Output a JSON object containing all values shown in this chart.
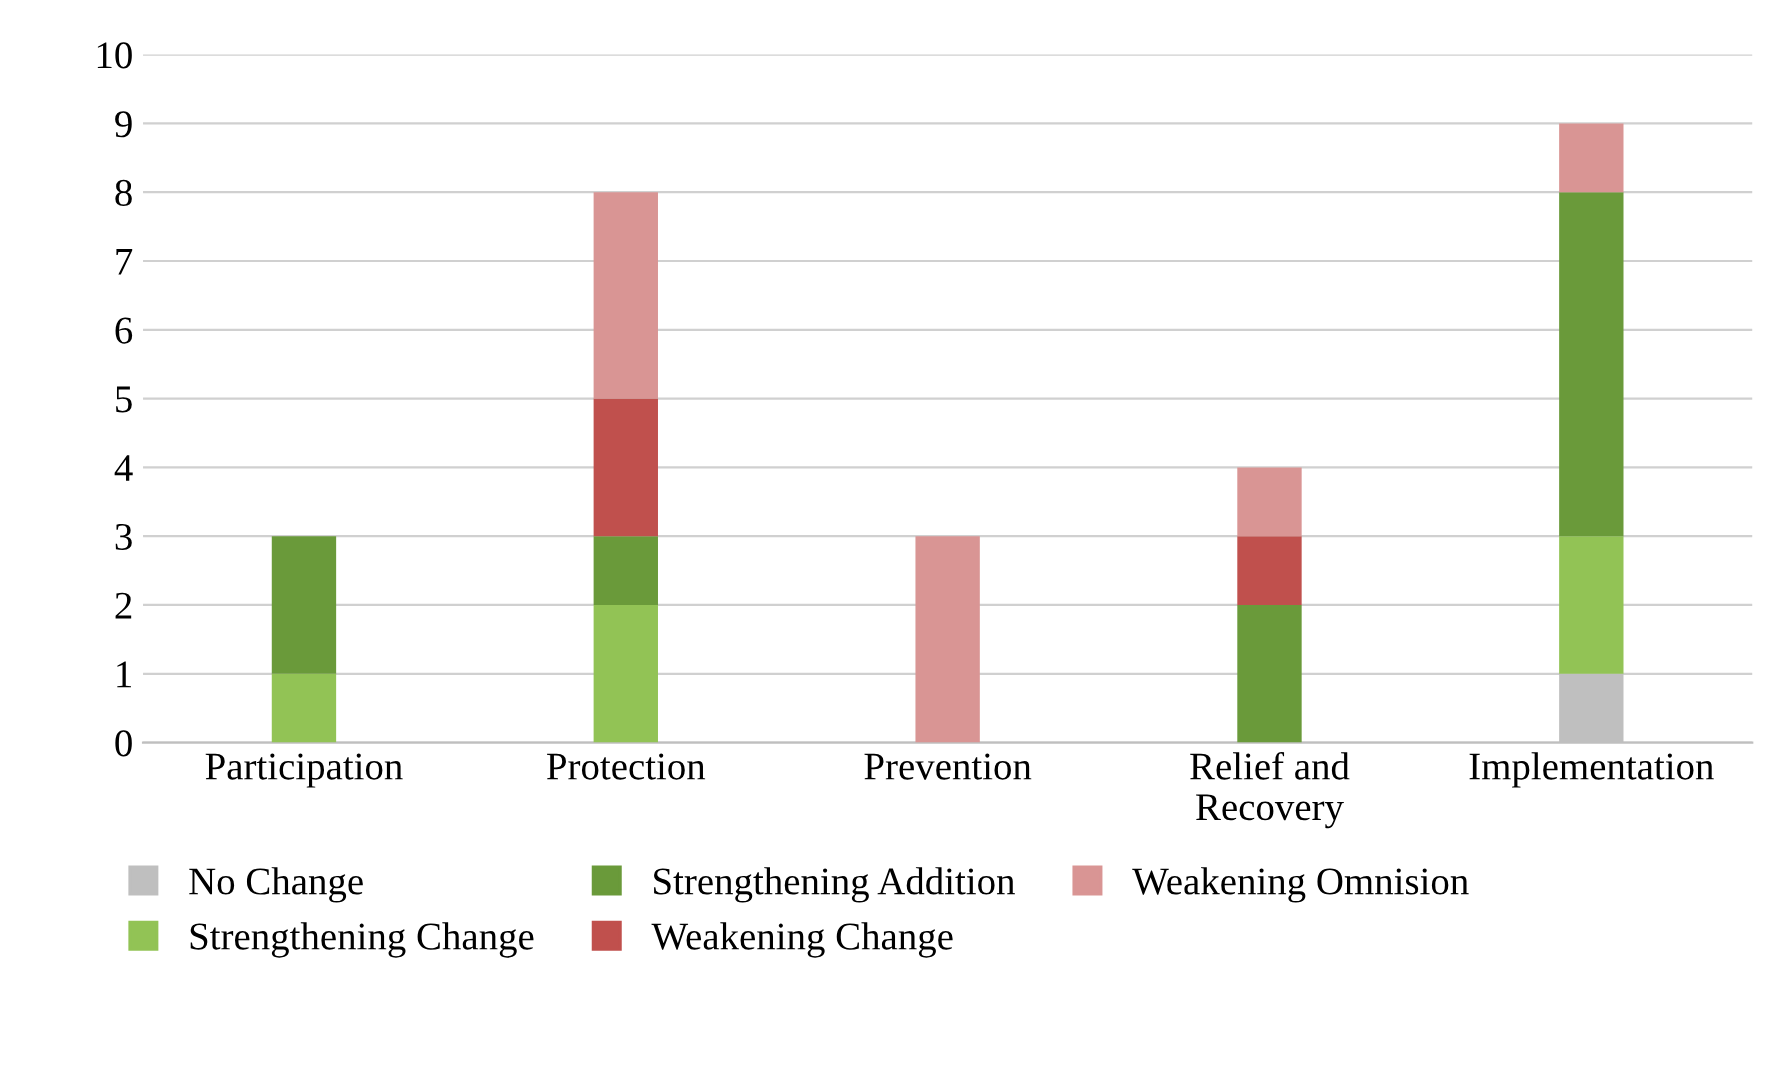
{
  "chart_data": {
    "type": "bar",
    "stacked": true,
    "categories": [
      "Participation",
      "Protection",
      "Prevention",
      "Relief and\nRecovery",
      "Implementation"
    ],
    "series": [
      {
        "name": "No Change",
        "color": "#bfbfbf",
        "values": [
          0,
          0,
          0,
          0,
          1
        ]
      },
      {
        "name": "Strengthening Change",
        "color": "#92c355",
        "values": [
          1,
          2,
          0,
          0,
          2
        ]
      },
      {
        "name": "Strengthening Addition",
        "color": "#6a9a3a",
        "values": [
          2,
          1,
          0,
          2,
          5
        ]
      },
      {
        "name": "Weakening Change",
        "color": "#c0504d",
        "values": [
          0,
          2,
          0,
          1,
          0
        ]
      },
      {
        "name": "Weakening Omnision",
        "color": "#d99594",
        "values": [
          0,
          3,
          3,
          1,
          1
        ]
      }
    ],
    "ylim": [
      0,
      10
    ],
    "yticks": [
      0,
      1,
      2,
      3,
      4,
      5,
      6,
      7,
      8,
      9,
      10
    ],
    "grid": "y",
    "legend": "bottom"
  }
}
